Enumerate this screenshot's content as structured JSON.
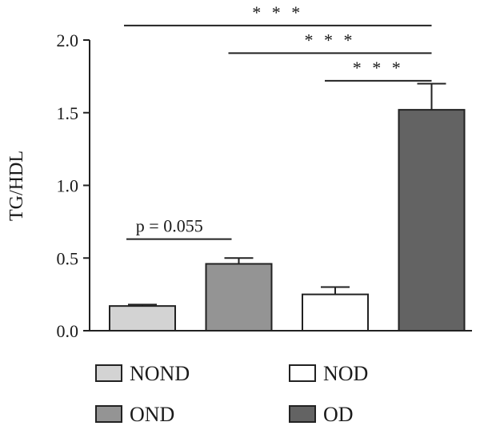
{
  "chart_data": {
    "type": "bar",
    "title": "",
    "xlabel": "",
    "ylabel": "TG/HDL",
    "ylim": [
      0,
      2.0
    ],
    "yticks": [
      0.0,
      0.5,
      1.0,
      1.5,
      2.0
    ],
    "ytick_labels": [
      "0.0",
      "0.5",
      "1.0",
      "1.5",
      "2.0"
    ],
    "grid": false,
    "legend_position": "bottom",
    "categories": [
      "NOND",
      "OND",
      "NOD",
      "OD"
    ],
    "values": [
      0.17,
      0.46,
      0.25,
      1.52
    ],
    "errors": [
      0.01,
      0.04,
      0.05,
      0.18
    ],
    "colors": [
      "#d3d3d3",
      "#949494",
      "#ffffff",
      "#636363"
    ],
    "legend": [
      {
        "label": "NOND",
        "color": "#d3d3d3"
      },
      {
        "label": "NOD",
        "color": "#ffffff"
      },
      {
        "label": "OND",
        "color": "#949494"
      },
      {
        "label": "OD",
        "color": "#636363"
      }
    ],
    "comparisons": [
      {
        "from": 0,
        "to": 1,
        "label": "p = 0.055",
        "level": 0.63
      },
      {
        "from": 2,
        "to": 3,
        "label": "* * *",
        "level": 1.72
      },
      {
        "from": 1,
        "to": 3,
        "label": "* * *",
        "level": 1.91
      },
      {
        "from": 0,
        "to": 3,
        "label": "* * *",
        "level": 2.1
      }
    ]
  }
}
